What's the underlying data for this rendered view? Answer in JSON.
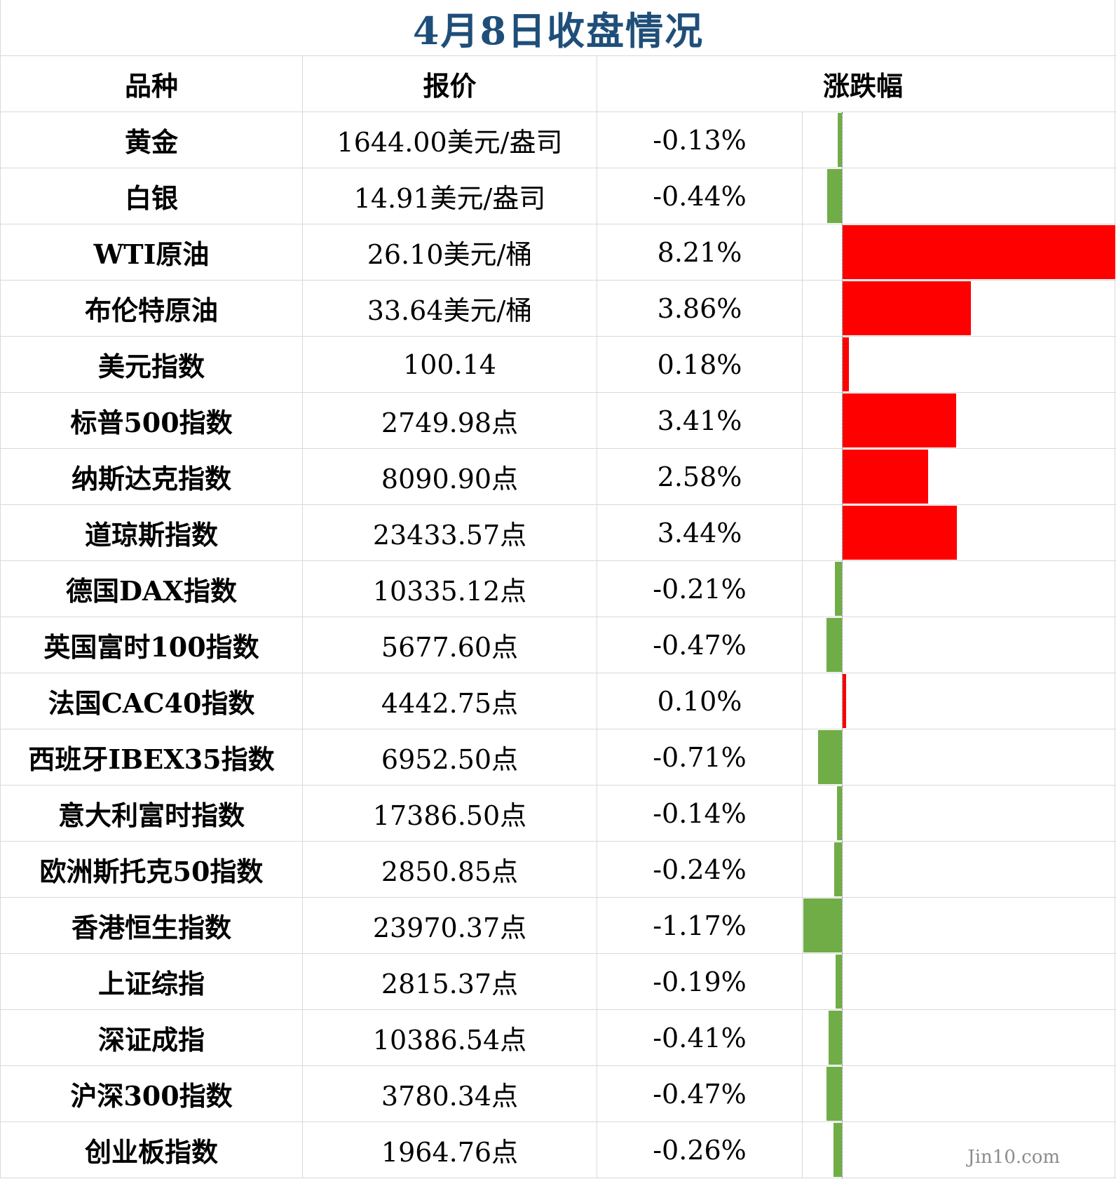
{
  "title": "4月8日收盘情况",
  "headers": {
    "name": "品种",
    "price": "报价",
    "change": "涨跌幅"
  },
  "colors": {
    "up": "#ff0000",
    "down": "#70ad47",
    "title": "#1f4e79"
  },
  "watermark": "Jin10.com",
  "chart_data": {
    "type": "bar",
    "categories": [
      "黄金",
      "白银",
      "WTI原油",
      "布伦特原油",
      "美元指数",
      "标普500指数",
      "纳斯达克指数",
      "道琼斯指数",
      "德国DAX指数",
      "英国富时100指数",
      "法国CAC40指数",
      "西班牙IBEX35指数",
      "意大利富时指数",
      "欧洲斯托克50指数",
      "香港恒生指数",
      "上证综指",
      "深证成指",
      "沪深300指数",
      "创业板指数"
    ],
    "values": [
      -0.13,
      -0.44,
      8.21,
      3.86,
      0.18,
      3.41,
      2.58,
      3.44,
      -0.21,
      -0.47,
      0.1,
      -0.71,
      -0.14,
      -0.24,
      -1.17,
      -0.19,
      -0.41,
      -0.47,
      -0.26
    ],
    "orientation": "horizontal",
    "xlim": [
      -1.17,
      8.21
    ]
  },
  "rows": [
    {
      "name": "黄金",
      "price": "1644.00美元/盎司",
      "change": "-0.13%",
      "value": -0.13
    },
    {
      "name": "白银",
      "price": "14.91美元/盎司",
      "change": "-0.44%",
      "value": -0.44
    },
    {
      "name": "WTI原油",
      "price": "26.10美元/桶",
      "change": "8.21%",
      "value": 8.21
    },
    {
      "name": "布伦特原油",
      "price": "33.64美元/桶",
      "change": "3.86%",
      "value": 3.86
    },
    {
      "name": "美元指数",
      "price": "100.14",
      "change": "0.18%",
      "value": 0.18
    },
    {
      "name": "标普500指数",
      "price": "2749.98点",
      "change": "3.41%",
      "value": 3.41
    },
    {
      "name": "纳斯达克指数",
      "price": "8090.90点",
      "change": "2.58%",
      "value": 2.58
    },
    {
      "name": "道琼斯指数",
      "price": "23433.57点",
      "change": "3.44%",
      "value": 3.44
    },
    {
      "name": "德国DAX指数",
      "price": "10335.12点",
      "change": "-0.21%",
      "value": -0.21
    },
    {
      "name": "英国富时100指数",
      "price": "5677.60点",
      "change": "-0.47%",
      "value": -0.47
    },
    {
      "name": "法国CAC40指数",
      "price": "4442.75点",
      "change": "0.10%",
      "value": 0.1
    },
    {
      "name": "西班牙IBEX35指数",
      "price": "6952.50点",
      "change": "-0.71%",
      "value": -0.71
    },
    {
      "name": "意大利富时指数",
      "price": "17386.50点",
      "change": "-0.14%",
      "value": -0.14
    },
    {
      "name": "欧洲斯托克50指数",
      "price": "2850.85点",
      "change": "-0.24%",
      "value": -0.24
    },
    {
      "name": "香港恒生指数",
      "price": "23970.37点",
      "change": "-1.17%",
      "value": -1.17
    },
    {
      "name": "上证综指",
      "price": "2815.37点",
      "change": "-0.19%",
      "value": -0.19
    },
    {
      "name": "深证成指",
      "price": "10386.54点",
      "change": "-0.41%",
      "value": -0.41
    },
    {
      "name": "沪深300指数",
      "price": "3780.34点",
      "change": "-0.47%",
      "value": -0.47
    },
    {
      "name": "创业板指数",
      "price": "1964.76点",
      "change": "-0.26%",
      "value": -0.26
    }
  ]
}
